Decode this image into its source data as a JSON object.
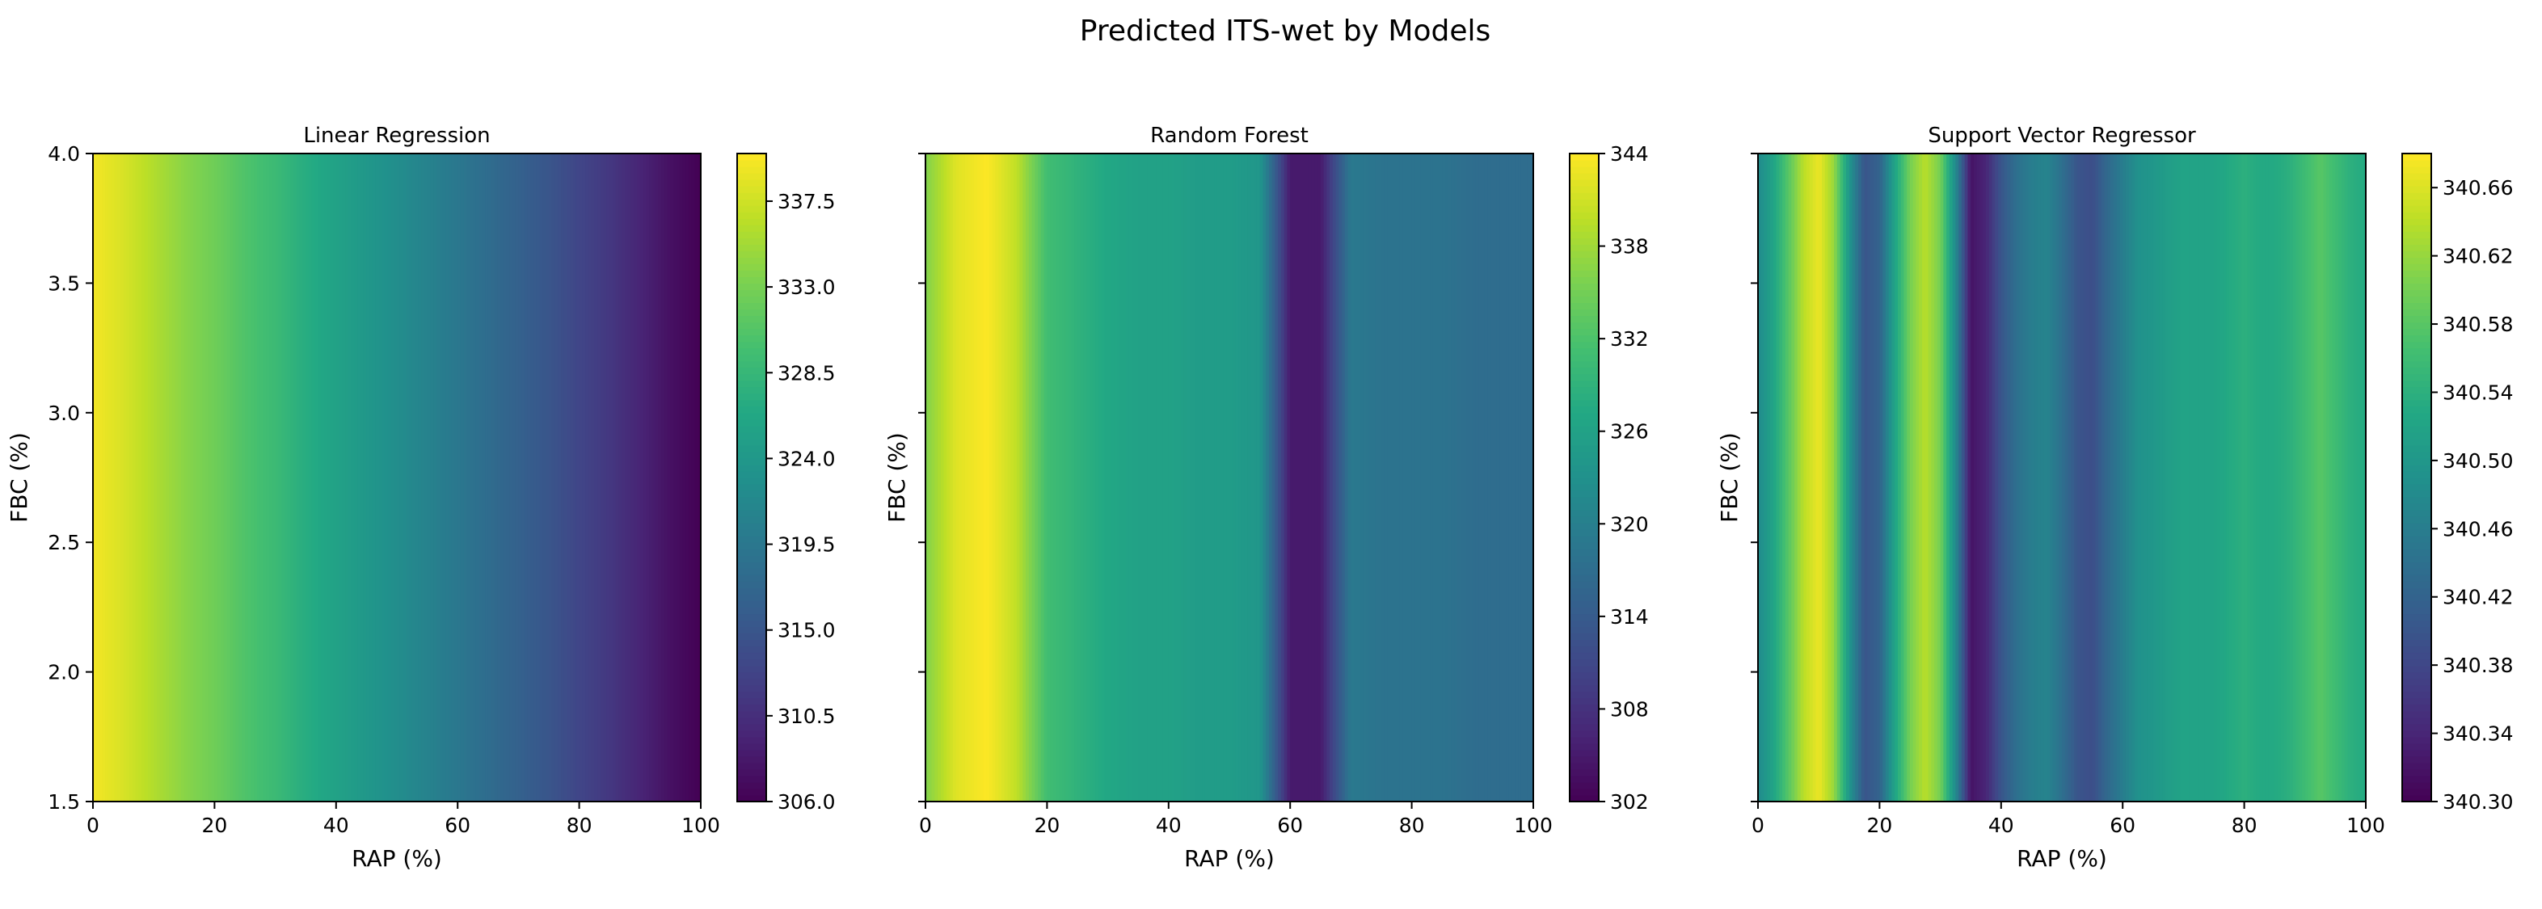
{
  "figure": {
    "title": "Predicted ITS-wet by Models"
  },
  "colormap": [
    "#440154",
    "#482475",
    "#414487",
    "#355f8d",
    "#2a788e",
    "#21918c",
    "#22a884",
    "#44bf70",
    "#7ad151",
    "#bddf26",
    "#fde725"
  ],
  "chart_data": [
    {
      "type": "heatmap",
      "title": "Linear Regression",
      "xlabel": "RAP (%)",
      "ylabel": "FBC (%)",
      "xlim": [
        0,
        100
      ],
      "ylim": [
        1.5,
        4.0
      ],
      "xticks": [
        "0",
        "20",
        "40",
        "60",
        "80",
        "100"
      ],
      "yticks": [
        "1.5",
        "2.0",
        "2.5",
        "3.0",
        "3.5",
        "4.0"
      ],
      "colorbar": {
        "min": 306.0,
        "max": 340.0,
        "ticks": [
          "306.0",
          "310.5",
          "315.0",
          "319.5",
          "324.0",
          "328.5",
          "333.0",
          "337.5"
        ]
      },
      "x": [
        0,
        5,
        10,
        15,
        20,
        25,
        30,
        35,
        40,
        45,
        50,
        55,
        60,
        65,
        70,
        75,
        80,
        85,
        90,
        95,
        100
      ],
      "values": [
        339.5,
        338.0,
        336.0,
        334.0,
        332.5,
        330.5,
        329.0,
        327.0,
        325.5,
        324.0,
        322.5,
        321.0,
        319.5,
        318.0,
        316.5,
        315.0,
        313.0,
        311.5,
        309.5,
        307.5,
        306.0
      ]
    },
    {
      "type": "heatmap",
      "title": "Random Forest",
      "xlabel": "RAP (%)",
      "ylabel": "FBC (%)",
      "xlim": [
        0,
        100
      ],
      "ylim": [
        1.5,
        4.0
      ],
      "xticks": [
        "0",
        "20",
        "40",
        "60",
        "80",
        "100"
      ],
      "yticks": [
        "",
        "",
        "",
        "",
        "",
        ""
      ],
      "colorbar": {
        "min": 302,
        "max": 344,
        "ticks": [
          "302",
          "308",
          "314",
          "320",
          "326",
          "332",
          "338",
          "344"
        ]
      },
      "x": [
        0,
        5,
        10,
        15,
        20,
        25,
        30,
        35,
        40,
        45,
        50,
        55,
        60,
        65,
        70,
        75,
        80,
        85,
        90,
        95,
        100
      ],
      "values": [
        336,
        342,
        344,
        340,
        331,
        329,
        327,
        326,
        326,
        325,
        325,
        324,
        305,
        305,
        319,
        318,
        318,
        318,
        317,
        317,
        317
      ]
    },
    {
      "type": "heatmap",
      "title": "Support Vector Regressor",
      "xlabel": "RAP (%)",
      "ylabel": "FBC (%)",
      "xlim": [
        0,
        100
      ],
      "ylim": [
        1.5,
        4.0
      ],
      "xticks": [
        "0",
        "20",
        "40",
        "60",
        "80",
        "100"
      ],
      "yticks": [
        "",
        "",
        "",
        "",
        "",
        ""
      ],
      "colorbar": {
        "min": 340.3,
        "max": 340.68,
        "ticks": [
          "340.30",
          "340.34",
          "340.38",
          "340.42",
          "340.46",
          "340.50",
          "340.54",
          "340.58",
          "340.62",
          "340.66"
        ]
      },
      "x": [
        0,
        2.5,
        5,
        7.5,
        10,
        12.5,
        15,
        17.5,
        20,
        22.5,
        25,
        27.5,
        30,
        32.5,
        35,
        37.5,
        40,
        42.5,
        45,
        47.5,
        50,
        52.5,
        55,
        57.5,
        60,
        62.5,
        65,
        67.5,
        70,
        72.5,
        75,
        77.5,
        80,
        82.5,
        85,
        87.5,
        90,
        92.5,
        95,
        97.5,
        100
      ],
      "values": [
        340.48,
        340.52,
        340.58,
        340.64,
        340.67,
        340.62,
        340.5,
        340.4,
        340.42,
        340.52,
        340.6,
        340.64,
        340.6,
        340.48,
        340.32,
        340.34,
        340.4,
        340.44,
        340.46,
        340.47,
        340.44,
        340.4,
        340.39,
        340.43,
        340.46,
        340.49,
        340.5,
        340.51,
        340.52,
        340.52,
        340.52,
        340.53,
        340.54,
        340.53,
        340.53,
        340.54,
        340.56,
        340.58,
        340.56,
        340.54,
        340.53
      ]
    }
  ]
}
